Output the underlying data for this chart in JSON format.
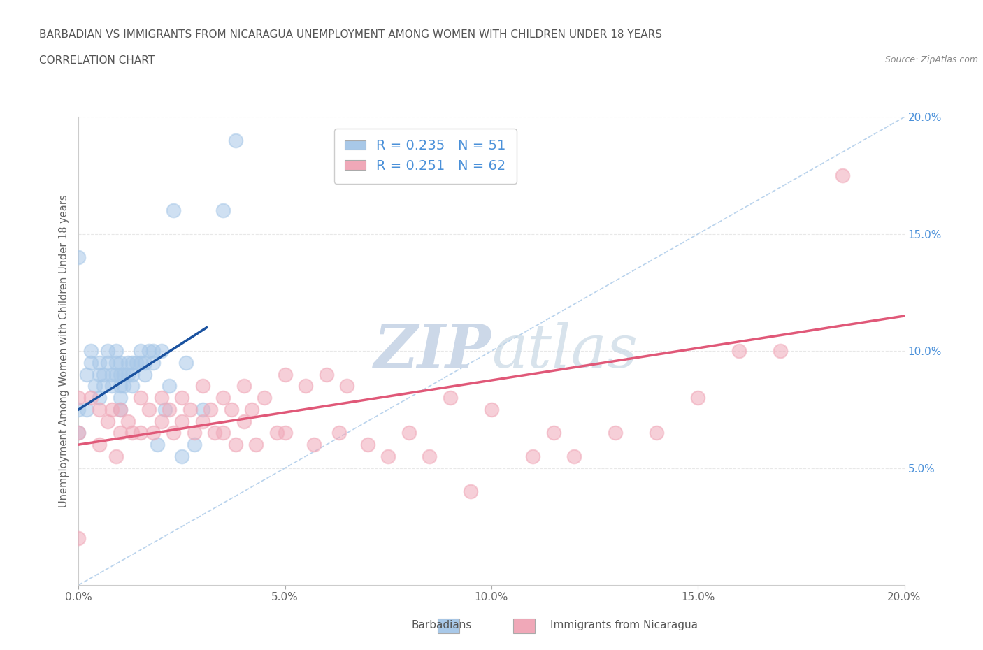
{
  "title_line1": "BARBADIAN VS IMMIGRANTS FROM NICARAGUA UNEMPLOYMENT AMONG WOMEN WITH CHILDREN UNDER 18 YEARS",
  "title_line2": "CORRELATION CHART",
  "source_text": "Source: ZipAtlas.com",
  "ylabel": "Unemployment Among Women with Children Under 18 years",
  "xlim": [
    0.0,
    0.2
  ],
  "ylim": [
    0.0,
    0.2
  ],
  "xtick_labels": [
    "0.0%",
    "5.0%",
    "10.0%",
    "15.0%",
    "20.0%"
  ],
  "xtick_vals": [
    0.0,
    0.05,
    0.1,
    0.15,
    0.2
  ],
  "ytick_labels": [
    "5.0%",
    "10.0%",
    "15.0%",
    "20.0%"
  ],
  "ytick_vals": [
    0.05,
    0.1,
    0.15,
    0.2
  ],
  "legend_r1": "R = 0.235   N = 51",
  "legend_r2": "R = 0.251   N = 62",
  "blue_scatter_color": "#a8c8e8",
  "pink_scatter_color": "#f0a8b8",
  "blue_line_color": "#1a52a0",
  "pink_line_color": "#e05878",
  "dashed_line_color": "#a8c8e8",
  "legend_text_color": "#4a90d9",
  "ytick_color": "#4a90d9",
  "title_color": "#555555",
  "source_color": "#888888",
  "bg_color": "#ffffff",
  "grid_color": "#e8e8e8",
  "watermark_color": "#ccd8e8",
  "barbadians_x": [
    0.0,
    0.0,
    0.0,
    0.002,
    0.002,
    0.003,
    0.003,
    0.004,
    0.005,
    0.005,
    0.005,
    0.006,
    0.006,
    0.007,
    0.007,
    0.008,
    0.008,
    0.009,
    0.009,
    0.009,
    0.01,
    0.01,
    0.01,
    0.01,
    0.01,
    0.011,
    0.011,
    0.012,
    0.012,
    0.013,
    0.013,
    0.013,
    0.014,
    0.015,
    0.015,
    0.016,
    0.016,
    0.017,
    0.018,
    0.018,
    0.019,
    0.02,
    0.021,
    0.022,
    0.023,
    0.025,
    0.026,
    0.028,
    0.03,
    0.035,
    0.038
  ],
  "barbadians_y": [
    0.065,
    0.14,
    0.075,
    0.075,
    0.09,
    0.095,
    0.1,
    0.085,
    0.08,
    0.09,
    0.095,
    0.085,
    0.09,
    0.095,
    0.1,
    0.085,
    0.09,
    0.09,
    0.095,
    0.1,
    0.075,
    0.08,
    0.085,
    0.09,
    0.095,
    0.085,
    0.09,
    0.09,
    0.095,
    0.085,
    0.09,
    0.095,
    0.095,
    0.095,
    0.1,
    0.09,
    0.095,
    0.1,
    0.095,
    0.1,
    0.06,
    0.1,
    0.075,
    0.085,
    0.16,
    0.055,
    0.095,
    0.06,
    0.075,
    0.16,
    0.19
  ],
  "nicaragua_x": [
    0.0,
    0.0,
    0.0,
    0.003,
    0.005,
    0.005,
    0.007,
    0.008,
    0.009,
    0.01,
    0.01,
    0.012,
    0.013,
    0.015,
    0.015,
    0.017,
    0.018,
    0.02,
    0.02,
    0.022,
    0.023,
    0.025,
    0.025,
    0.027,
    0.028,
    0.03,
    0.03,
    0.032,
    0.033,
    0.035,
    0.035,
    0.037,
    0.038,
    0.04,
    0.04,
    0.042,
    0.043,
    0.045,
    0.048,
    0.05,
    0.05,
    0.055,
    0.057,
    0.06,
    0.063,
    0.065,
    0.07,
    0.075,
    0.08,
    0.085,
    0.09,
    0.095,
    0.1,
    0.11,
    0.115,
    0.12,
    0.13,
    0.14,
    0.15,
    0.16,
    0.17,
    0.185
  ],
  "nicaragua_y": [
    0.065,
    0.08,
    0.02,
    0.08,
    0.075,
    0.06,
    0.07,
    0.075,
    0.055,
    0.075,
    0.065,
    0.07,
    0.065,
    0.08,
    0.065,
    0.075,
    0.065,
    0.08,
    0.07,
    0.075,
    0.065,
    0.08,
    0.07,
    0.075,
    0.065,
    0.085,
    0.07,
    0.075,
    0.065,
    0.08,
    0.065,
    0.075,
    0.06,
    0.085,
    0.07,
    0.075,
    0.06,
    0.08,
    0.065,
    0.09,
    0.065,
    0.085,
    0.06,
    0.09,
    0.065,
    0.085,
    0.06,
    0.055,
    0.065,
    0.055,
    0.08,
    0.04,
    0.075,
    0.055,
    0.065,
    0.055,
    0.065,
    0.065,
    0.08,
    0.1,
    0.1,
    0.175
  ],
  "blue_trend_x": [
    0.0,
    0.031
  ],
  "blue_trend_y": [
    0.075,
    0.11
  ],
  "pink_trend_x": [
    0.0,
    0.2
  ],
  "pink_trend_y": [
    0.06,
    0.115
  ]
}
